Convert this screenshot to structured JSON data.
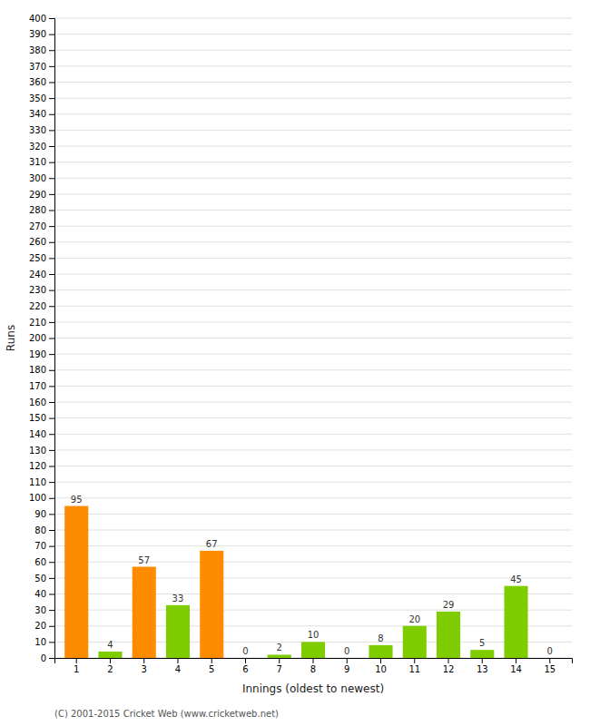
{
  "chart_data": {
    "type": "bar",
    "xlabel": "Innings (oldest to newest)",
    "ylabel": "Runs",
    "categories": [
      "1",
      "2",
      "3",
      "4",
      "5",
      "6",
      "7",
      "8",
      "9",
      "10",
      "11",
      "12",
      "13",
      "14",
      "15"
    ],
    "values": [
      95,
      4,
      57,
      33,
      67,
      0,
      2,
      10,
      0,
      8,
      20,
      29,
      5,
      45,
      0
    ],
    "colors": [
      "#FF8C00",
      "#7FCC00",
      "#FF8C00",
      "#7FCC00",
      "#FF8C00",
      "#7FCC00",
      "#7FCC00",
      "#7FCC00",
      "#7FCC00",
      "#7FCC00",
      "#7FCC00",
      "#7FCC00",
      "#7FCC00",
      "#7FCC00",
      "#7FCC00"
    ],
    "ylim": [
      0,
      400
    ],
    "yticks": [
      0,
      10,
      20,
      30,
      40,
      50,
      60,
      70,
      80,
      90,
      100,
      110,
      120,
      130,
      140,
      150,
      160,
      170,
      180,
      190,
      200,
      210,
      220,
      230,
      240,
      250,
      260,
      270,
      280,
      290,
      300,
      310,
      320,
      330,
      340,
      350,
      360,
      370,
      380,
      390,
      400
    ],
    "grid": true,
    "data_labels": true,
    "annotations": [
      "(C) 2001-2015 Cricket Web (www.cricketweb.net)"
    ]
  }
}
